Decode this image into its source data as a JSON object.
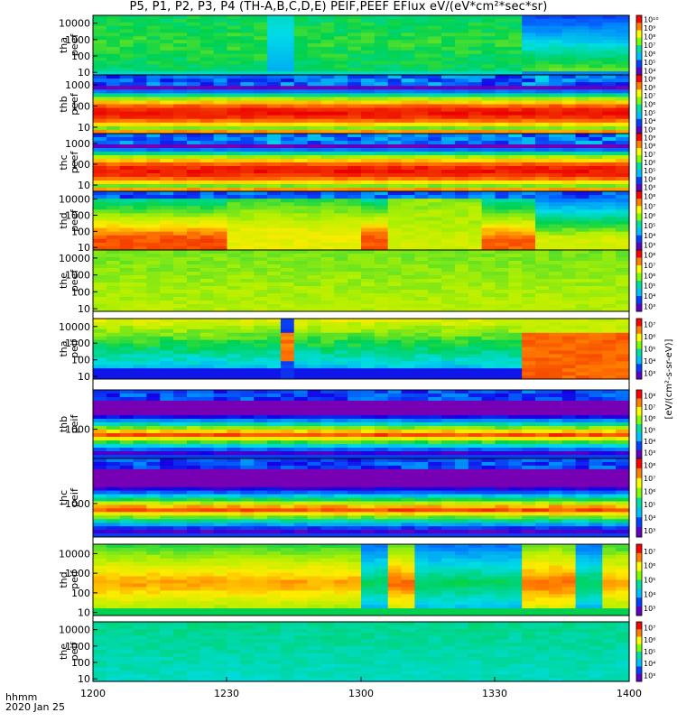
{
  "title": "P5, P1, P2, P3, P4 (TH-A,B,C,D,E) PEIF,PEEF EFlux eV/(eV*cm²*sec*sr)",
  "x_axis": {
    "ticks": [
      "1200",
      "1230",
      "1300",
      "1330",
      "1400"
    ],
    "label_line1": "hhmm",
    "label_line2": "2020 Jan 25"
  },
  "colorbar_units_label": "[eV/(cm²-s-sr-eV)]",
  "chart_data": [
    {
      "type": "heatmap",
      "name": "tha peef",
      "ylabel": [
        "tha",
        "peef"
      ],
      "y_scale": "log",
      "ylim": [
        7,
        30000
      ],
      "yticks": [
        "10",
        "100",
        "1000",
        "10000"
      ],
      "colorbar_ticks": [
        "10⁴",
        "10⁵",
        "10⁶",
        "10⁷",
        "10⁸",
        "10⁹",
        "10¹⁰"
      ],
      "x_range": [
        "1200",
        "1400"
      ]
    },
    {
      "type": "heatmap",
      "name": "thb peef",
      "ylabel": [
        "thb",
        "peef"
      ],
      "y_scale": "log",
      "ylim": [
        5,
        3000
      ],
      "yticks": [
        "10",
        "100",
        "1000"
      ],
      "colorbar_ticks": [
        "10³",
        "10⁴",
        "10⁵",
        "10⁶",
        "10⁷",
        "10⁸",
        "10⁹"
      ],
      "x_range": [
        "1200",
        "1400"
      ]
    },
    {
      "type": "heatmap",
      "name": "thc peef",
      "ylabel": [
        "thc",
        "peef"
      ],
      "y_scale": "log",
      "ylim": [
        5,
        3000
      ],
      "yticks": [
        "10",
        "100",
        "1000"
      ],
      "colorbar_ticks": [
        "10³",
        "10⁴",
        "10⁵",
        "10⁶",
        "10⁷",
        "10⁸",
        "10⁹"
      ],
      "x_range": [
        "1200",
        "1400"
      ]
    },
    {
      "type": "heatmap",
      "name": "thd peef",
      "ylabel": [
        "thd",
        "peef"
      ],
      "y_scale": "log",
      "ylim": [
        7,
        30000
      ],
      "yticks": [
        "10",
        "100",
        "1000",
        "10000"
      ],
      "colorbar_ticks": [
        "10³",
        "10⁴",
        "10⁵",
        "10⁶",
        "10⁷",
        "10⁸"
      ],
      "x_range": [
        "1200",
        "1400"
      ]
    },
    {
      "type": "heatmap",
      "name": "the peef",
      "ylabel": [
        "the",
        "peef"
      ],
      "y_scale": "log",
      "ylim": [
        7,
        30000
      ],
      "yticks": [
        "10",
        "100",
        "1000",
        "10000"
      ],
      "colorbar_ticks": [
        "10³",
        "10⁴",
        "10⁵",
        "10⁶",
        "10⁷",
        "10⁸"
      ],
      "x_range": [
        "1200",
        "1400"
      ]
    },
    {
      "type": "heatmap",
      "name": "tha peif",
      "ylabel": [
        "tha",
        "peif"
      ],
      "y_scale": "log",
      "ylim": [
        7,
        30000
      ],
      "yticks": [
        "10",
        "100",
        "1000",
        "10000"
      ],
      "colorbar_ticks": [
        "10³",
        "10⁴",
        "10⁵",
        "10⁶",
        "10⁷"
      ],
      "x_range": [
        "1200",
        "1400"
      ]
    },
    {
      "type": "heatmap",
      "name": "thb peif",
      "ylabel": [
        "thb",
        "peif"
      ],
      "y_scale": "log",
      "ylim": [
        80,
        30000
      ],
      "yticks": [
        "1000"
      ],
      "colorbar_ticks": [
        "10³",
        "10⁴",
        "10⁵",
        "10⁶",
        "10⁷",
        "10⁸"
      ],
      "x_range": [
        "1200",
        "1400"
      ]
    },
    {
      "type": "heatmap",
      "name": "thc peif",
      "ylabel": [
        "thc",
        "peif"
      ],
      "y_scale": "log",
      "ylim": [
        80,
        30000
      ],
      "yticks": [
        "1000"
      ],
      "colorbar_ticks": [
        "10³",
        "10⁴",
        "10⁵",
        "10⁶",
        "10⁷",
        "10⁸"
      ],
      "x_range": [
        "1200",
        "1400"
      ]
    },
    {
      "type": "heatmap",
      "name": "thd peif",
      "ylabel": [
        "thd",
        "peif"
      ],
      "y_scale": "log",
      "ylim": [
        7,
        30000
      ],
      "yticks": [
        "10",
        "100",
        "1000",
        "10000"
      ],
      "colorbar_ticks": [
        "10³",
        "10⁴",
        "10⁵",
        "10⁶",
        "10⁷"
      ],
      "x_range": [
        "1200",
        "1400"
      ]
    },
    {
      "type": "heatmap",
      "name": "the peif",
      "ylabel": [
        "the",
        "peif"
      ],
      "y_scale": "log",
      "ylim": [
        7,
        30000
      ],
      "yticks": [
        "10",
        "100",
        "1000",
        "10000"
      ],
      "colorbar_ticks": [
        "10³",
        "10⁴",
        "10⁵",
        "10⁶",
        "10⁷"
      ],
      "x_range": [
        "1200",
        "1400"
      ]
    }
  ]
}
